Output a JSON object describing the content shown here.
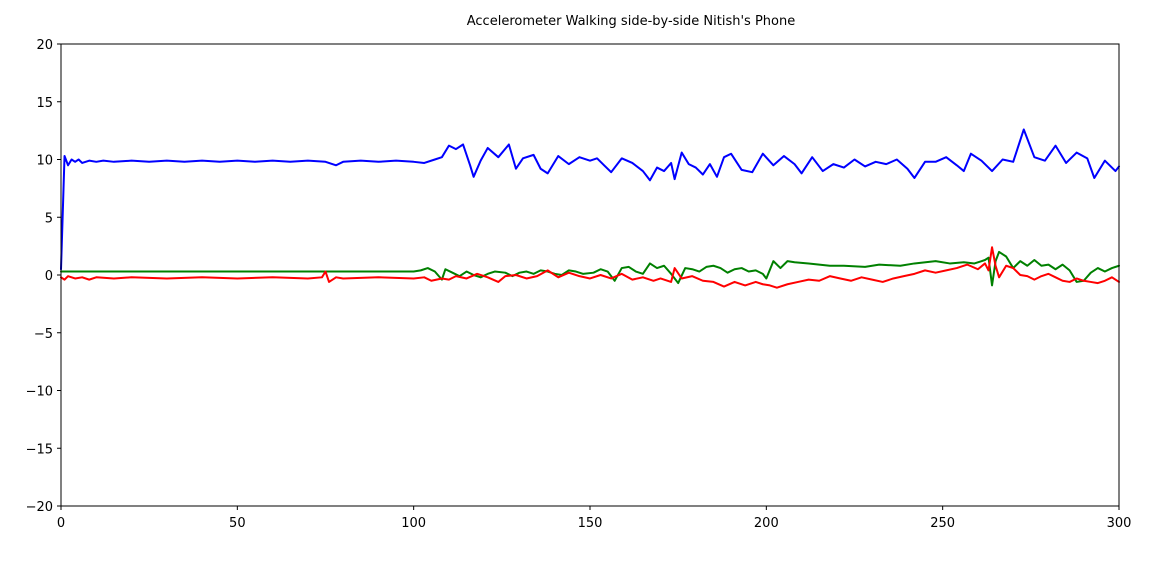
{
  "chart_data": {
    "type": "line",
    "title": "Accelerometer Walking side-by-side Nitish's Phone",
    "xlabel": "",
    "ylabel": "",
    "xlim": [
      0,
      300
    ],
    "ylim": [
      -20,
      20
    ],
    "xticks": [
      0,
      50,
      100,
      150,
      200,
      250,
      300
    ],
    "yticks": [
      20,
      15,
      10,
      5,
      0,
      -5,
      -10,
      -15,
      -20
    ],
    "ytick_labels": [
      "20",
      "15",
      "10",
      "5",
      "0",
      "−5",
      "−10",
      "−15",
      "−20"
    ],
    "grid": false,
    "legend": "none",
    "series": [
      {
        "color": "#0000ff",
        "x": [
          0,
          1,
          2,
          3,
          4,
          5,
          6,
          8,
          10,
          12,
          15,
          20,
          25,
          30,
          35,
          40,
          45,
          50,
          55,
          60,
          65,
          70,
          75,
          78,
          80,
          85,
          90,
          95,
          100,
          103,
          106,
          108,
          110,
          112,
          114,
          116,
          117,
          119,
          121,
          124,
          127,
          129,
          131,
          134,
          136,
          138,
          141,
          144,
          147,
          150,
          152,
          154,
          156,
          159,
          162,
          165,
          167,
          169,
          171,
          173,
          174,
          176,
          178,
          180,
          182,
          184,
          186,
          188,
          190,
          193,
          196,
          199,
          202,
          205,
          208,
          210,
          213,
          216,
          219,
          222,
          225,
          228,
          231,
          234,
          237,
          240,
          242,
          245,
          248,
          251,
          254,
          256,
          258,
          261,
          264,
          267,
          270,
          273,
          276,
          279,
          282,
          285,
          288,
          291,
          293,
          296,
          299,
          300
        ],
        "y": [
          0.5,
          10.3,
          9.5,
          10.0,
          9.8,
          10.0,
          9.7,
          9.9,
          9.8,
          9.9,
          9.8,
          9.9,
          9.8,
          9.9,
          9.8,
          9.9,
          9.8,
          9.9,
          9.8,
          9.9,
          9.8,
          9.9,
          9.8,
          9.5,
          9.8,
          9.9,
          9.8,
          9.9,
          9.8,
          9.7,
          10.0,
          10.2,
          11.2,
          10.9,
          11.3,
          9.5,
          8.5,
          9.9,
          11.0,
          10.2,
          11.3,
          9.2,
          10.1,
          10.4,
          9.2,
          8.8,
          10.3,
          9.6,
          10.2,
          9.9,
          10.1,
          9.5,
          8.9,
          10.1,
          9.7,
          9.0,
          8.2,
          9.3,
          9.0,
          9.7,
          8.3,
          10.6,
          9.6,
          9.3,
          8.7,
          9.6,
          8.5,
          10.2,
          10.5,
          9.1,
          8.9,
          10.5,
          9.5,
          10.3,
          9.6,
          8.8,
          10.2,
          9.0,
          9.6,
          9.3,
          10.0,
          9.4,
          9.8,
          9.6,
          10.0,
          9.2,
          8.4,
          9.8,
          9.8,
          10.2,
          9.5,
          9.0,
          10.5,
          9.9,
          9.0,
          10.0,
          9.8,
          12.6,
          10.2,
          9.9,
          11.2,
          9.7,
          10.6,
          10.1,
          8.4,
          9.9,
          9.0,
          9.4
        ]
      },
      {
        "color": "#008000",
        "x": [
          0,
          5,
          10,
          15,
          20,
          30,
          40,
          50,
          60,
          70,
          75,
          80,
          90,
          100,
          102,
          104,
          106,
          108,
          109,
          111,
          113,
          115,
          117,
          119,
          121,
          123,
          126,
          128,
          130,
          132,
          134,
          136,
          138,
          140,
          142,
          144,
          146,
          148,
          151,
          153,
          155,
          157,
          159,
          161,
          163,
          165,
          167,
          169,
          171,
          173,
          175,
          177,
          179,
          181,
          183,
          185,
          187,
          189,
          191,
          193,
          195,
          197,
          199,
          200,
          202,
          204,
          206,
          208,
          212,
          218,
          222,
          228,
          232,
          238,
          242,
          248,
          252,
          256,
          259,
          261,
          262,
          263,
          264,
          265,
          266,
          268,
          270,
          272,
          274,
          276,
          278,
          280,
          282,
          284,
          286,
          288,
          290,
          292,
          294,
          296,
          298,
          300
        ],
        "y": [
          0.3,
          0.3,
          0.3,
          0.3,
          0.3,
          0.3,
          0.3,
          0.3,
          0.3,
          0.3,
          0.3,
          0.3,
          0.3,
          0.3,
          0.4,
          0.6,
          0.3,
          -0.4,
          0.5,
          0.2,
          -0.1,
          0.3,
          0.0,
          -0.2,
          0.1,
          0.3,
          0.2,
          -0.1,
          0.2,
          0.3,
          0.1,
          0.4,
          0.3,
          0.1,
          0.0,
          0.4,
          0.3,
          0.1,
          0.2,
          0.5,
          0.3,
          -0.5,
          0.6,
          0.7,
          0.3,
          0.1,
          1.0,
          0.6,
          0.8,
          0.1,
          -0.7,
          0.6,
          0.5,
          0.3,
          0.7,
          0.8,
          0.6,
          0.2,
          0.5,
          0.6,
          0.3,
          0.4,
          0.1,
          -0.3,
          1.2,
          0.6,
          1.2,
          1.1,
          1.0,
          0.8,
          0.8,
          0.7,
          0.9,
          0.8,
          1.0,
          1.2,
          1.0,
          1.1,
          1.0,
          1.2,
          1.3,
          1.5,
          -0.9,
          1.2,
          2.0,
          1.6,
          0.6,
          1.2,
          0.8,
          1.3,
          0.8,
          0.9,
          0.5,
          0.9,
          0.4,
          -0.6,
          -0.5,
          0.2,
          0.6,
          0.3,
          0.6,
          0.8
        ]
      },
      {
        "color": "#ff0000",
        "x": [
          0,
          1,
          2,
          4,
          6,
          8,
          10,
          15,
          20,
          30,
          40,
          50,
          60,
          70,
          74,
          75,
          76,
          78,
          80,
          90,
          100,
          103,
          105,
          108,
          110,
          112,
          115,
          118,
          121,
          124,
          126,
          129,
          132,
          135,
          138,
          141,
          144,
          147,
          150,
          153,
          156,
          159,
          162,
          165,
          168,
          170,
          173,
          174,
          176,
          179,
          182,
          185,
          188,
          191,
          194,
          197,
          199,
          201,
          203,
          206,
          209,
          212,
          215,
          218,
          221,
          224,
          227,
          230,
          233,
          236,
          239,
          242,
          245,
          248,
          251,
          254,
          257,
          260,
          262,
          263,
          264,
          265,
          266,
          268,
          270,
          272,
          274,
          276,
          278,
          280,
          282,
          284,
          286,
          288,
          290,
          292,
          294,
          296,
          298,
          300
        ],
        "y": [
          -0.2,
          -0.4,
          -0.1,
          -0.3,
          -0.2,
          -0.4,
          -0.2,
          -0.3,
          -0.2,
          -0.3,
          -0.2,
          -0.3,
          -0.2,
          -0.3,
          -0.2,
          0.3,
          -0.6,
          -0.2,
          -0.3,
          -0.2,
          -0.3,
          -0.2,
          -0.5,
          -0.3,
          -0.4,
          -0.1,
          -0.3,
          0.1,
          -0.2,
          -0.6,
          -0.1,
          0.0,
          -0.3,
          -0.1,
          0.4,
          -0.2,
          0.2,
          -0.1,
          -0.3,
          0.0,
          -0.3,
          0.1,
          -0.4,
          -0.2,
          -0.5,
          -0.3,
          -0.6,
          0.6,
          -0.3,
          -0.1,
          -0.5,
          -0.6,
          -1.0,
          -0.6,
          -0.9,
          -0.6,
          -0.8,
          -0.9,
          -1.1,
          -0.8,
          -0.6,
          -0.4,
          -0.5,
          -0.1,
          -0.3,
          -0.5,
          -0.2,
          -0.4,
          -0.6,
          -0.3,
          -0.1,
          0.1,
          0.4,
          0.2,
          0.4,
          0.6,
          0.9,
          0.5,
          1.0,
          0.4,
          2.4,
          0.8,
          -0.2,
          0.8,
          0.6,
          0.0,
          -0.1,
          -0.4,
          -0.1,
          0.1,
          -0.2,
          -0.5,
          -0.6,
          -0.3,
          -0.5,
          -0.6,
          -0.7,
          -0.5,
          -0.2,
          -0.6
        ]
      }
    ]
  }
}
